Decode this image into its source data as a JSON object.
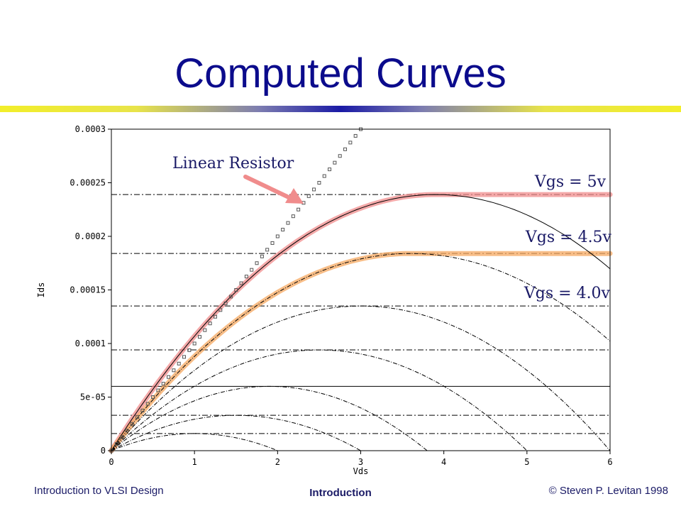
{
  "slide": {
    "title": "Computed Curves",
    "footer_left": "Introduction to VLSI Design",
    "footer_center": "Introduction",
    "footer_right": "© Steven P. Levitan 1998"
  },
  "colors": {
    "title": "#0b0b8c",
    "annotation_text": "#1a1a66",
    "vgs5_highlight": "#f08c8c",
    "vgs45_highlight": "#f5a860",
    "arrow": "#f08c8c",
    "plot_ink": "#000000"
  },
  "chart_data": {
    "type": "line",
    "xlabel": "Vds",
    "ylabel": "Ids",
    "xlim": [
      0,
      6
    ],
    "ylim": [
      0,
      0.0003
    ],
    "x_ticks": [
      0,
      1,
      2,
      3,
      4,
      5,
      6
    ],
    "x_tick_labels": [
      "0",
      "1",
      "2",
      "3",
      "4",
      "5",
      "6"
    ],
    "y_ticks": [
      0,
      5e-05,
      0.0001,
      0.00015,
      0.0002,
      0.00025,
      0.0003
    ],
    "y_tick_labels": [
      "0",
      "5e-05",
      "0.0001",
      "0.00015",
      "0.0002",
      "0.00025",
      "0.0003"
    ],
    "grid": false,
    "curve_model": "Ids = k*(2*Vov*Vds - Vds^2), parabola peaking at Vds = Vov",
    "parabolas": [
      {
        "vov": 3.9,
        "peak": 0.000239
      },
      {
        "vov": 3.6,
        "peak": 0.000184
      },
      {
        "vov": 3.0,
        "peak": 0.000135
      },
      {
        "vov": 2.5,
        "peak": 9.4e-05
      },
      {
        "vov": 1.9,
        "peak": 6e-05
      },
      {
        "vov": 1.5,
        "peak": 3.3e-05
      },
      {
        "vov": 1.0,
        "peak": 1.6e-05
      }
    ],
    "saturation_levels": [
      0.000239,
      0.000184,
      0.000135,
      9.4e-05,
      6e-05,
      3.3e-05,
      1.6e-05
    ],
    "linear_resistor": {
      "x": [
        0,
        3.0
      ],
      "y": [
        0,
        0.0003
      ]
    },
    "highlights": [
      {
        "label": "Vgs = 5v",
        "vov": 3.9,
        "peak": 0.000239,
        "color": "#f08c8c"
      },
      {
        "label": "Vgs = 4.5v",
        "vov": 3.6,
        "peak": 0.000184,
        "color": "#f5a860"
      }
    ],
    "annotations": [
      {
        "text": "Linear Resistor"
      },
      {
        "text": "Vgs = 5v"
      },
      {
        "text": "Vgs = 4.5v"
      },
      {
        "text": "Vgs = 4.0v"
      }
    ]
  }
}
